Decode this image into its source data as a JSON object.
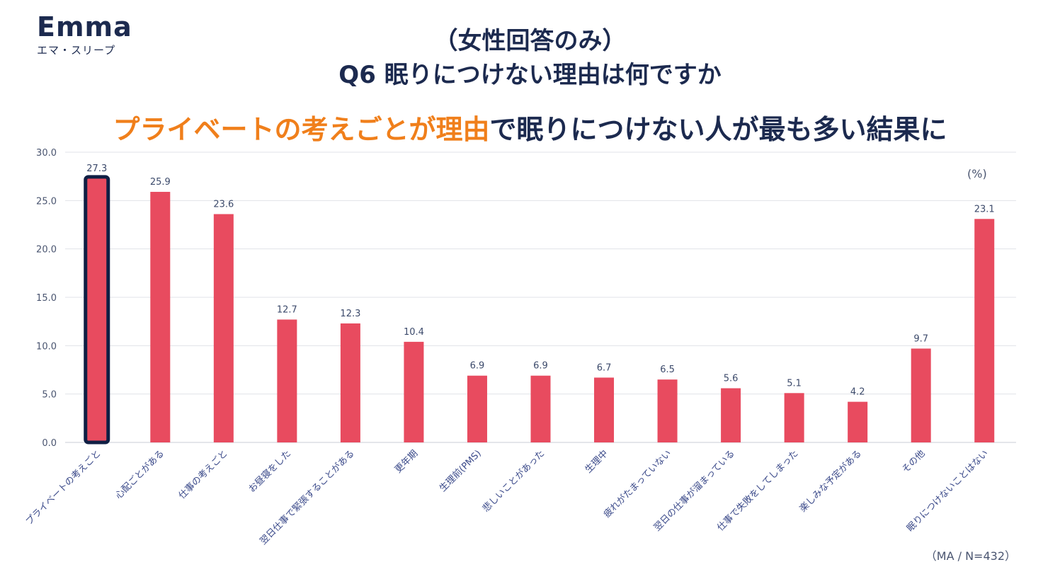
{
  "logo": {
    "wordmark": "Emma",
    "subtitle": "エマ・スリープ"
  },
  "title_line1": "（女性回答のみ）",
  "title_line2": "Q6 眠りにつけない理由は何ですか",
  "headline": {
    "accent": "プライベートの考えごとが理由",
    "rest": "で眠りにつけない人が最も多い結果に"
  },
  "unit_label": "(%)",
  "note": "（MA / N=432）",
  "colors": {
    "bar": "#e84b5f",
    "highlight_border": "#0f1f44",
    "accent": "#f07f1b",
    "text": "#1c2a4f"
  },
  "chart_data": {
    "type": "bar",
    "categories": [
      "プライベートの考えごと",
      "心配ごとがある",
      "仕事の考えごと",
      "お昼寝をした",
      "翌日仕事で緊張することがある",
      "更年期",
      "生理前(PMS)",
      "悲しいことがあった",
      "生理中",
      "疲れがたまっていない",
      "翌日の仕事が溜まっている",
      "仕事で失敗をしてしまった",
      "楽しみな予定がある",
      "その他",
      "眠りにつけないことはない"
    ],
    "values": [
      27.3,
      25.9,
      23.6,
      12.7,
      12.3,
      10.4,
      6.9,
      6.9,
      6.7,
      6.5,
      5.6,
      5.1,
      4.2,
      9.7,
      23.1
    ],
    "value_labels": [
      "27.3",
      "25.9",
      "23.6",
      "12.7",
      "12.3",
      "10.4",
      "6.9",
      "6.9",
      "6.7",
      "6.5",
      "5.6",
      "5.1",
      "4.2",
      "9.7",
      "23.1"
    ],
    "y_ticks": [
      "0.0",
      "5.0",
      "10.0",
      "15.0",
      "20.0",
      "25.0",
      "30.0"
    ],
    "ylim": [
      0,
      30
    ],
    "highlight_index": 0,
    "grid": true
  }
}
